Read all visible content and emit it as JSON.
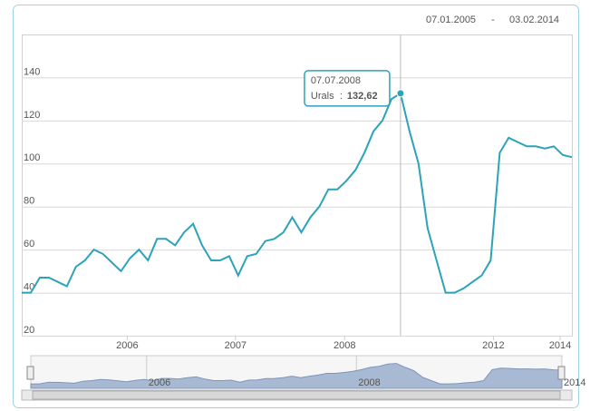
{
  "range": {
    "start": "07.01.2005",
    "separator": "-",
    "end": "03.02.2014"
  },
  "chart_data": {
    "type": "line",
    "series": [
      {
        "name": "Urals",
        "color": "#2ba3b9",
        "values": [
          40,
          40,
          47,
          47,
          45,
          43,
          52,
          55,
          60,
          58,
          54,
          50,
          56,
          60,
          55,
          65,
          65,
          62,
          68,
          72,
          62,
          55,
          55,
          57,
          48,
          57,
          58,
          64,
          65,
          68,
          75,
          68,
          75,
          80,
          88,
          88,
          92,
          97,
          105,
          115,
          120,
          130,
          132.62,
          115,
          100,
          70,
          55,
          40,
          40,
          42,
          45,
          48,
          55,
          105,
          112,
          110,
          108,
          108,
          107,
          108,
          104,
          103
        ]
      }
    ],
    "ylim": [
      20,
      160
    ],
    "yticks": [
      20,
      40,
      60,
      80,
      100,
      120,
      140
    ],
    "xticks": [
      {
        "value": 11.7,
        "label": "2006"
      },
      {
        "value": 23.7,
        "label": "2007"
      },
      {
        "value": 35.8,
        "label": "2008"
      },
      {
        "value": 52.3,
        "label": "2012"
      },
      {
        "value": 59.7,
        "label": "2014"
      }
    ],
    "grid": true,
    "tooltip": {
      "x": "07.07.2008",
      "value_label": "132,62"
    },
    "navigator": {
      "color": "#a8b9d3",
      "xticks": [
        {
          "value": 13.3,
          "label": "2006"
        },
        {
          "value": 37.4,
          "label": "2008"
        },
        {
          "value": 61,
          "label": "2014"
        }
      ]
    }
  }
}
